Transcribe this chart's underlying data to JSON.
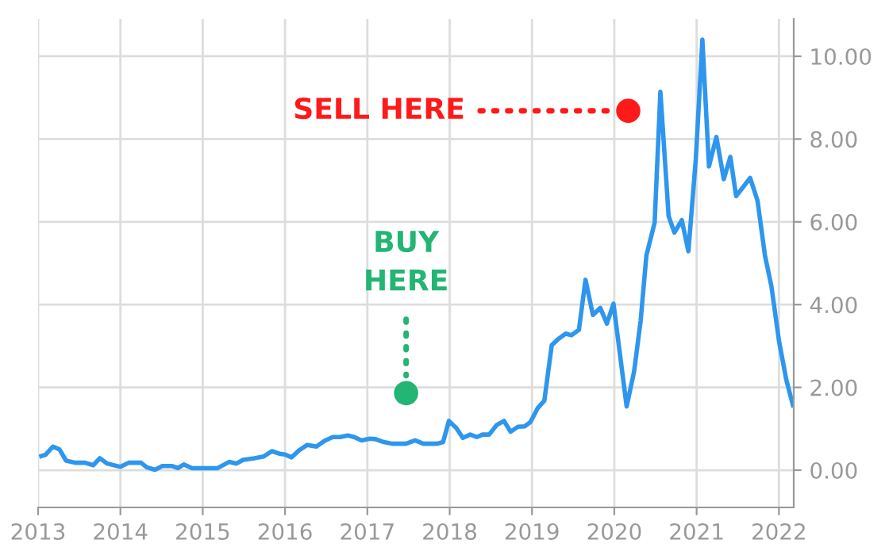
{
  "chart_data": {
    "type": "line",
    "x": [
      2013.04,
      2013.09,
      2013.18,
      2013.26,
      2013.34,
      2013.45,
      2013.57,
      2013.67,
      2013.75,
      2013.84,
      2014.0,
      2014.1,
      2014.25,
      2014.32,
      2014.42,
      2014.51,
      2014.63,
      2014.7,
      2014.77,
      2014.87,
      2015.18,
      2015.32,
      2015.41,
      2015.49,
      2015.63,
      2015.74,
      2015.84,
      2015.93,
      2016.0,
      2016.08,
      2016.17,
      2016.27,
      2016.38,
      2016.48,
      2016.58,
      2016.67,
      2016.76,
      2016.84,
      2016.93,
      2017.03,
      2017.1,
      2017.2,
      2017.3,
      2017.47,
      2017.58,
      2017.68,
      2017.85,
      2017.92,
      2017.99,
      2018.08,
      2018.16,
      2018.25,
      2018.33,
      2018.4,
      2018.48,
      2018.57,
      2018.66,
      2018.74,
      2018.83,
      2018.91,
      2018.98,
      2019.07,
      2019.15,
      2019.24,
      2019.32,
      2019.41,
      2019.48,
      2019.57,
      2019.65,
      2019.74,
      2019.83,
      2019.91,
      2019.99,
      2020.15,
      2020.24,
      2020.32,
      2020.39,
      2020.49,
      2020.56,
      2020.66,
      2020.73,
      2020.82,
      2020.9,
      2020.99,
      2021.07,
      2021.15,
      2021.24,
      2021.33,
      2021.41,
      2021.48,
      2021.65,
      2021.74,
      2021.83,
      2021.91,
      2022.0,
      2022.09,
      2022.17
    ],
    "series": [
      {
        "color": "#2f96ee",
        "values": [
          0.34,
          0.37,
          0.57,
          0.5,
          0.23,
          0.18,
          0.18,
          0.12,
          0.29,
          0.16,
          0.08,
          0.18,
          0.18,
          0.07,
          0.01,
          0.1,
          0.1,
          0.05,
          0.14,
          0.05,
          0.05,
          0.2,
          0.16,
          0.25,
          0.29,
          0.33,
          0.46,
          0.4,
          0.38,
          0.31,
          0.48,
          0.61,
          0.57,
          0.71,
          0.8,
          0.8,
          0.84,
          0.8,
          0.72,
          0.76,
          0.75,
          0.68,
          0.64,
          0.64,
          0.72,
          0.64,
          0.64,
          0.68,
          1.19,
          1.02,
          0.78,
          0.86,
          0.8,
          0.86,
          0.86,
          1.09,
          1.19,
          0.93,
          1.05,
          1.06,
          1.16,
          1.5,
          1.68,
          3.02,
          3.17,
          3.3,
          3.26,
          3.39,
          4.6,
          3.75,
          3.92,
          3.54,
          4.02,
          1.54,
          2.38,
          3.61,
          5.19,
          5.98,
          9.14,
          6.14,
          5.74,
          6.04,
          5.29,
          7.51,
          10.4,
          7.34,
          8.05,
          7.03,
          7.57,
          6.62,
          7.06,
          6.51,
          5.19,
          4.43,
          3.13,
          2.18,
          1.57
        ]
      }
    ],
    "xlim": [
      2013.0,
      2022.18
    ],
    "xticks": [
      2013,
      2014,
      2015,
      2016,
      2017,
      2018,
      2019,
      2020,
      2021,
      2022
    ],
    "ylim": [
      -0.9,
      10.9
    ],
    "yticks": [
      {
        "value": 0,
        "label": "0.00"
      },
      {
        "value": 2,
        "label": "2.00"
      },
      {
        "value": 4,
        "label": "4.00"
      },
      {
        "value": 6,
        "label": "6.00"
      },
      {
        "value": 8,
        "label": "8.00"
      },
      {
        "value": 10,
        "label": "10.00"
      }
    ],
    "grid": true,
    "annotations": [
      "SELL HERE",
      "BUY\nHERE"
    ]
  }
}
